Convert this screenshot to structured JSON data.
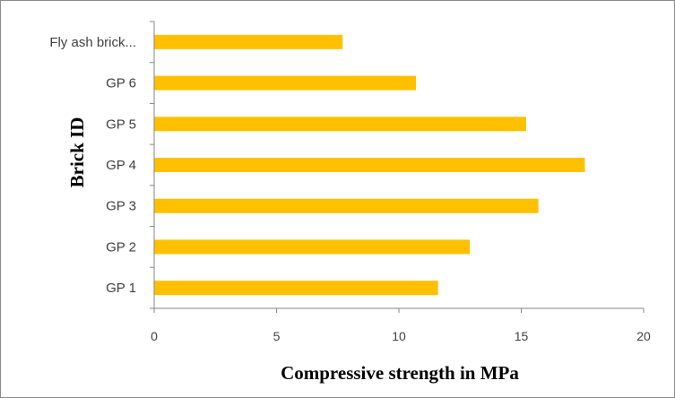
{
  "chart_data": {
    "type": "bar",
    "orientation": "horizontal",
    "categories": [
      "GP 1",
      "GP 2",
      "GP 3",
      "GP 4",
      "GP 5",
      "GP 6",
      "Fly ash brick..."
    ],
    "values": [
      11.6,
      12.9,
      15.7,
      17.6,
      15.2,
      10.7,
      7.7
    ],
    "xlim": [
      0,
      20
    ],
    "xticks": [
      0,
      5,
      10,
      15,
      20
    ],
    "xlabel": "Compressive strength in MPa",
    "ylabel": "Brick ID",
    "title": "",
    "grid": false,
    "legend": "none",
    "bar_color": "#FFC000",
    "axis_color": "#868686"
  }
}
